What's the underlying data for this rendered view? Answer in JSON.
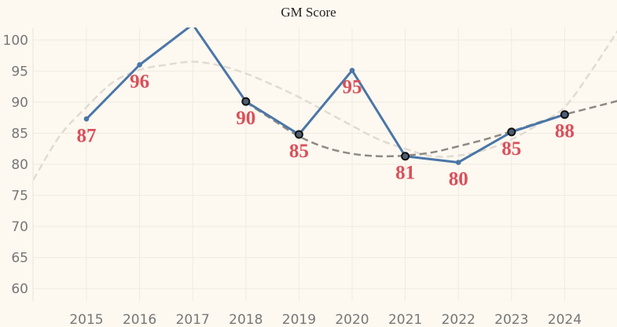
{
  "colors": {
    "background": "#fdf8f0",
    "line": "#4a76a8",
    "data_label": "#d9505a",
    "trend_dark": "#8e8a84",
    "trend_light": "#e0dbd3",
    "grid": "#f0ebe2"
  },
  "chart_data": {
    "type": "line",
    "title": "GM Score",
    "xlabel": "",
    "ylabel": "",
    "categories": [
      "2015",
      "2016",
      "2017",
      "2018",
      "2019",
      "2020",
      "2021",
      "2022",
      "2023",
      "2024"
    ],
    "series": [
      {
        "values": [
          87.3,
          96.0,
          102.5,
          90.1,
          84.8,
          95.1,
          81.3,
          80.3,
          85.2,
          88.0
        ]
      }
    ],
    "data_labels": [
      {
        "category": "2015",
        "text": "87"
      },
      {
        "category": "2016",
        "text": "96"
      },
      {
        "category": "2018",
        "text": "90"
      },
      {
        "category": "2019",
        "text": "85"
      },
      {
        "category": "2020",
        "text": "95"
      },
      {
        "category": "2021",
        "text": "81"
      },
      {
        "category": "2022",
        "text": "80"
      },
      {
        "category": "2023",
        "text": "85"
      },
      {
        "category": "2024",
        "text": "88"
      }
    ],
    "highlighted_points": [
      "2018",
      "2019",
      "2021",
      "2023",
      "2024"
    ],
    "trend_light": {
      "style": "dashed",
      "x": [
        2014.0,
        2014.5,
        2015.0,
        2015.5,
        2016.0,
        2016.5,
        2017.0,
        2017.5,
        2018.0,
        2018.5,
        2019.0,
        2019.5,
        2020.0,
        2020.5,
        2021.0,
        2021.5,
        2022.0,
        2022.5,
        2023.0,
        2023.5,
        2024.0,
        2024.5,
        2025.0
      ],
      "y": [
        77.5,
        84.6,
        89.2,
        93.2,
        95.2,
        96.0,
        96.5,
        95.9,
        94.6,
        92.8,
        90.8,
        88.5,
        86.2,
        84.0,
        82.5,
        81.3,
        81.4,
        82.3,
        84.0,
        86.4,
        89.2,
        95.0,
        101.5
      ]
    },
    "trend_dark": {
      "style": "dashed",
      "x": [
        2018.0,
        2018.5,
        2019.0,
        2019.5,
        2020.0,
        2020.5,
        2021.0,
        2021.5,
        2022.0,
        2022.5,
        2023.0,
        2023.5,
        2024.0,
        2024.5,
        2025.0
      ],
      "y": [
        90.0,
        87.2,
        84.5,
        82.7,
        81.7,
        81.3,
        81.4,
        81.9,
        82.9,
        84.0,
        85.3,
        86.7,
        88.0,
        89.1,
        90.2
      ]
    },
    "ylim": [
      58,
      102
    ],
    "yticks": [
      60,
      65,
      70,
      75,
      80,
      85,
      90,
      95,
      100
    ],
    "grid": true
  }
}
